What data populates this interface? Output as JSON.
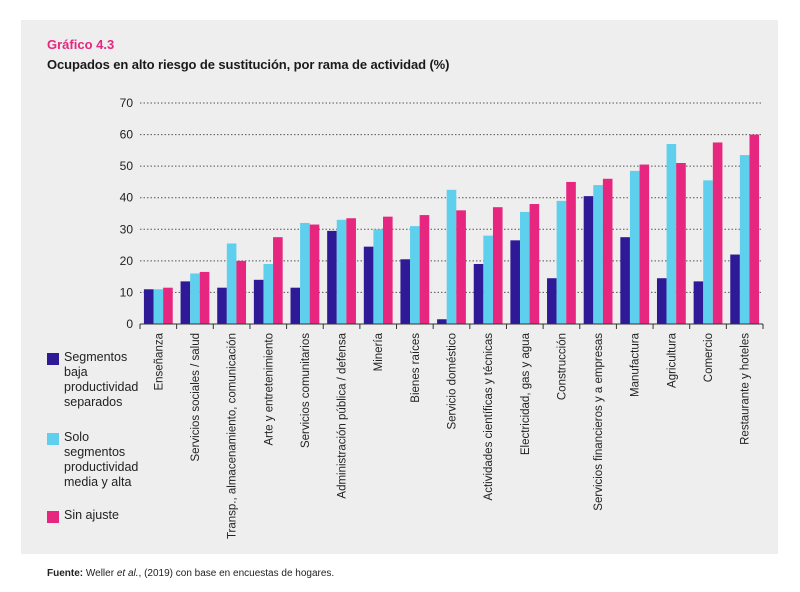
{
  "header": {
    "label": "Gráfico 4.3",
    "title": "Ocupados en alto riesgo de sustitución, por rama de actividad (%)"
  },
  "footer": {
    "source_label": "Fuente:",
    "source_author": "Weller",
    "source_etal": "et al.",
    "source_rest": ", (2019) con base en encuestas de hogares."
  },
  "colors": {
    "series1": "#2e1a96",
    "series2": "#5ecfec",
    "series3": "#e6267f",
    "background": "#eeeeee",
    "header_accent": "#e6267f"
  },
  "chart_data": {
    "type": "bar",
    "title": "Ocupados en alto riesgo de sustitución, por rama de actividad (%)",
    "xlabel": "",
    "ylabel": "",
    "ylim": [
      0,
      70
    ],
    "yticks": [
      0,
      10,
      20,
      30,
      40,
      50,
      60,
      70
    ],
    "grid": true,
    "legend_position": "left-bottom",
    "categories": [
      "Enseñanza",
      "Servicios sociales / salud",
      "Transp., almacenamiento, comunicación",
      "Arte y entretenimiento",
      "Servicios comunitarios",
      "Administración pública / defensa",
      "Minería",
      "Bienes raíces",
      "Servicio doméstico",
      "Actividades científicas y técnicas",
      "Electricidad, gas y agua",
      "Construcción",
      "Servicios financieros y a empresas",
      "Manufactura",
      "Agricultura",
      "Comercio",
      "Restaurante y hoteles"
    ],
    "series": [
      {
        "name": "Segmentos baja productividad separados",
        "values": [
          11,
          13.5,
          11.5,
          14,
          11.5,
          29.5,
          24.5,
          20.5,
          1.5,
          19,
          26.5,
          14.5,
          40.5,
          27.5,
          14.5,
          13.5,
          22
        ]
      },
      {
        "name": "Solo segmentos productividad media y alta",
        "values": [
          11,
          16,
          25.5,
          19,
          32,
          33,
          30,
          31,
          42.5,
          28,
          35.5,
          39,
          44,
          48.5,
          57,
          45.5,
          53.5
        ]
      },
      {
        "name": "Sin ajuste",
        "values": [
          11.5,
          16.5,
          20,
          27.5,
          31.5,
          33.5,
          34,
          34.5,
          36,
          37,
          38,
          45,
          46,
          50.5,
          51,
          57.5,
          60
        ]
      }
    ]
  }
}
